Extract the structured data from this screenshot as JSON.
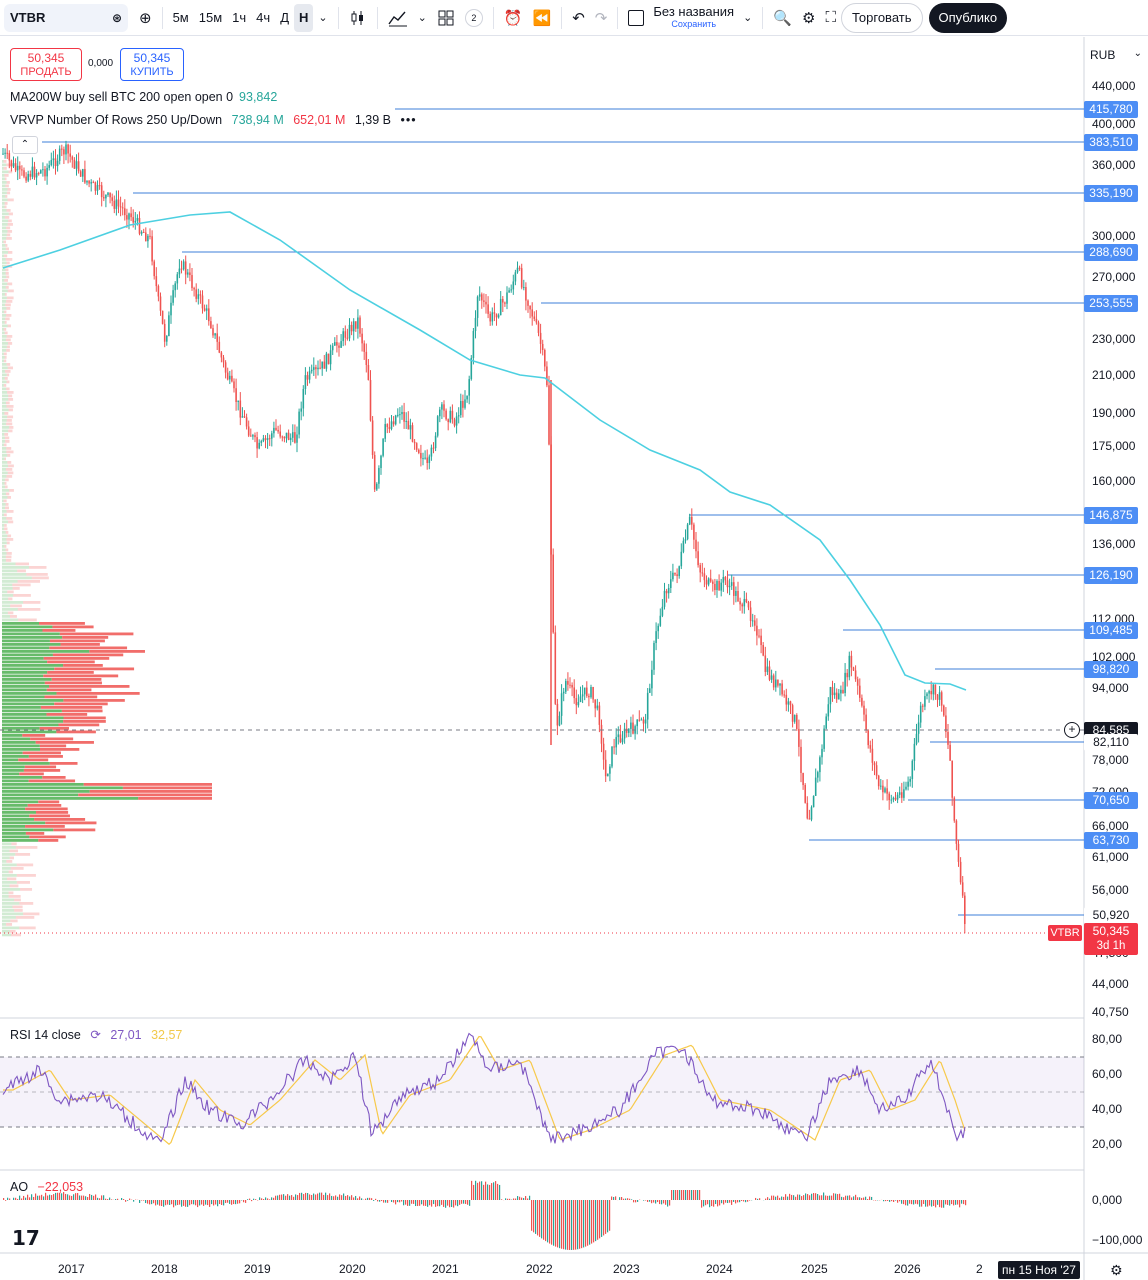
{
  "toolbar": {
    "symbol": "VTBR",
    "timeframes": [
      "5м",
      "15м",
      "1ч",
      "4ч",
      "Д",
      "Н"
    ],
    "active_timeframe": "Н",
    "layouts_count": "2",
    "layout_name": "Без названия",
    "layout_status": "Сохранить",
    "trade_label": "Торговать",
    "publish_label": "Опублико"
  },
  "quote": {
    "sell_price": "50,345",
    "sell_label": "ПРОДАТЬ",
    "spread": "0,000",
    "buy_price": "50,345",
    "buy_label": "КУПИТЬ"
  },
  "indicators": {
    "ma_name": "MA200W buy sell BTC 200 open open 0",
    "ma_value": "93,842",
    "vrvp_name": "VRVP Number Of Rows 250 Up/Down",
    "vrvp_up": "738,94 M",
    "vrvp_down": "652,01 M",
    "vrvp_total": "1,39 B",
    "rsi_name": "RSI 14 close",
    "rsi_value": "27,01",
    "rsi_ma": "32,57",
    "ao_name": "AO",
    "ao_value": "−22,053"
  },
  "price_axis": {
    "currency": "RUB",
    "labels": [
      "440,000",
      "420,000",
      "400,000",
      "360,000",
      "300,000",
      "270,000",
      "230,000",
      "210,000",
      "190,000",
      "175,000",
      "160,000",
      "136,000",
      "112,000",
      "102,000",
      "94,000",
      "78,000",
      "72,000",
      "66,000",
      "61,000",
      "56,000",
      "47,500",
      "44,000",
      "40,750"
    ],
    "levels": [
      "415,780",
      "383,510",
      "335,190",
      "288,690",
      "253,555",
      "146,875",
      "126,190",
      "109,485",
      "98,820",
      "84,585",
      "82,110",
      "70,650",
      "63,730",
      "50,920"
    ],
    "last_price": "50,345",
    "countdown": "3d 1h",
    "symbol_tag": "VTBR"
  },
  "rsi_axis": [
    "80,00",
    "60,00",
    "40,00",
    "20,00"
  ],
  "ao_axis": [
    "0,000",
    "−100,000"
  ],
  "time_axis": {
    "years": [
      "2017",
      "2018",
      "2019",
      "2020",
      "2021",
      "2022",
      "2023",
      "2024",
      "2025",
      "2026",
      "2"
    ],
    "cursor_date": "пн 15 Ноя '27"
  },
  "colors": {
    "up": "#26a69a",
    "down": "#ef5350",
    "ma": "#4dd0e1",
    "level_line": "#3d7fd9",
    "rsi": "#7e57c2",
    "rsi_ma": "#f7c94a",
    "vrvp_up": "#4caf50",
    "vrvp_down": "#ef5350"
  }
}
